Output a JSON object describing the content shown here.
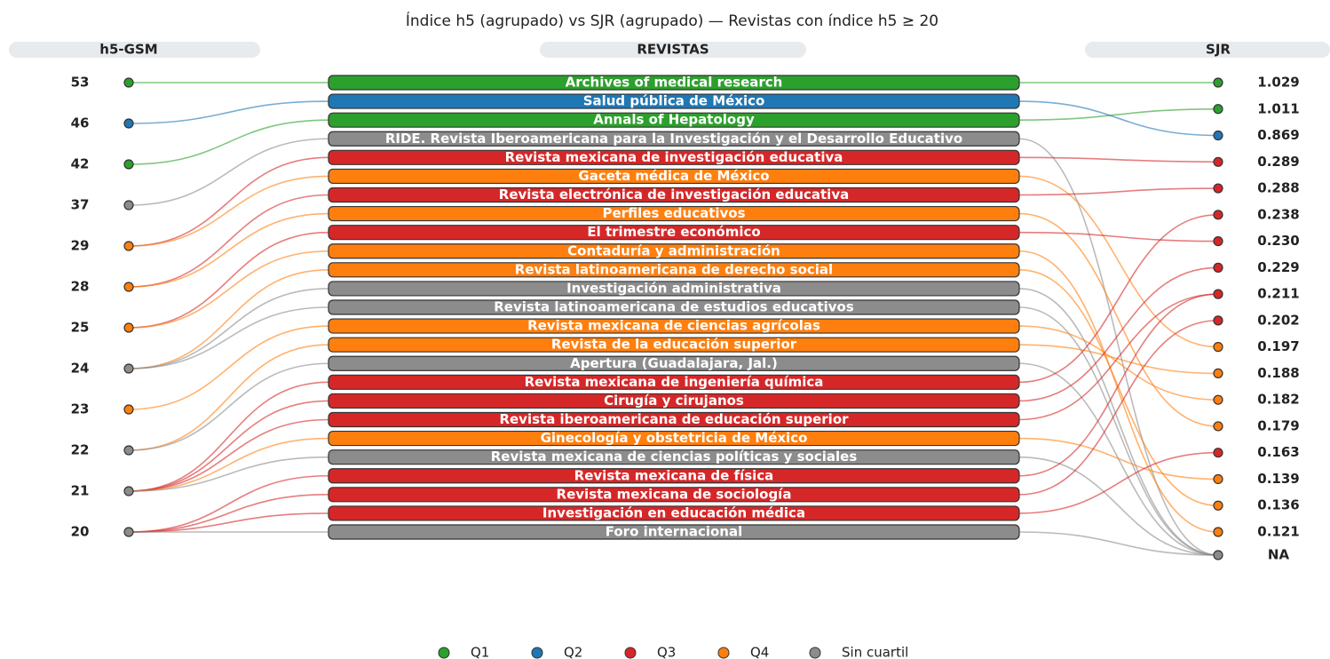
{
  "chart_data": {
    "type": "parallel",
    "title": "Índice h5 (agrupado) vs SJR (agrupado) — Revistas con índice h5 ≥ 20",
    "headers": {
      "left": "h5-GSM",
      "middle": "REVISTAS",
      "right": "SJR"
    },
    "legend": [
      {
        "name": "Q1",
        "color": "#2ca02c"
      },
      {
        "name": "Q2",
        "color": "#1f77b4"
      },
      {
        "name": "Q3",
        "color": "#d62728"
      },
      {
        "name": "Q4",
        "color": "#ff7f0e"
      },
      {
        "name": "Sin cuartil",
        "color": "#8c8c8c"
      }
    ],
    "h5_levels": [
      {
        "value": 53,
        "color": "#2ca02c"
      },
      {
        "value": 46,
        "color": "#1f77b4"
      },
      {
        "value": 42,
        "color": "#2ca02c"
      },
      {
        "value": 37,
        "color": "#8c8c8c"
      },
      {
        "value": 29,
        "color": "#ff7f0e"
      },
      {
        "value": 28,
        "color": "#ff7f0e"
      },
      {
        "value": 25,
        "color": "#ff7f0e"
      },
      {
        "value": 24,
        "color": "#8c8c8c"
      },
      {
        "value": 23,
        "color": "#ff7f0e"
      },
      {
        "value": 22,
        "color": "#8c8c8c"
      },
      {
        "value": 21,
        "color": "#8c8c8c"
      },
      {
        "value": 20,
        "color": "#8c8c8c"
      }
    ],
    "sjr_levels": [
      {
        "value": 1.029,
        "label": "1.029",
        "color": "#2ca02c"
      },
      {
        "value": 1.011,
        "label": "1.011",
        "color": "#2ca02c"
      },
      {
        "value": 0.869,
        "label": "0.869",
        "color": "#1f77b4"
      },
      {
        "value": 0.289,
        "label": "0.289",
        "color": "#d62728"
      },
      {
        "value": 0.288,
        "label": "0.288",
        "color": "#d62728"
      },
      {
        "value": 0.238,
        "label": "0.238",
        "color": "#d62728"
      },
      {
        "value": 0.23,
        "label": "0.230",
        "color": "#d62728"
      },
      {
        "value": 0.229,
        "label": "0.229",
        "color": "#d62728"
      },
      {
        "value": 0.211,
        "label": "0.211",
        "color": "#d62728"
      },
      {
        "value": 0.202,
        "label": "0.202",
        "color": "#d62728"
      },
      {
        "value": 0.197,
        "label": "0.197",
        "color": "#ff7f0e"
      },
      {
        "value": 0.188,
        "label": "0.188",
        "color": "#ff7f0e"
      },
      {
        "value": 0.182,
        "label": "0.182",
        "color": "#ff7f0e"
      },
      {
        "value": 0.179,
        "label": "0.179",
        "color": "#ff7f0e"
      },
      {
        "value": 0.163,
        "label": "0.163",
        "color": "#d62728"
      },
      {
        "value": 0.139,
        "label": "0.139",
        "color": "#ff7f0e"
      },
      {
        "value": 0.136,
        "label": "0.136",
        "color": "#ff7f0e"
      },
      {
        "value": 0.121,
        "label": "0.121",
        "color": "#ff7f0e"
      },
      {
        "value": null,
        "label": "NA",
        "color": "#8c8c8c"
      }
    ],
    "journals": [
      {
        "name": "Archives of medical research",
        "h5": 53,
        "sjr": 1.029,
        "quartile": "Q1"
      },
      {
        "name": "Salud pública de México",
        "h5": 46,
        "sjr": 0.869,
        "quartile": "Q2"
      },
      {
        "name": "Annals of Hepatology",
        "h5": 42,
        "sjr": 1.011,
        "quartile": "Q1"
      },
      {
        "name": "RIDE. Revista Iberoamericana para la Investigación y el Desarrollo Educativo",
        "h5": 37,
        "sjr": null,
        "quartile": "Sin cuartil"
      },
      {
        "name": "Revista mexicana de investigación educativa",
        "h5": 29,
        "sjr": 0.289,
        "quartile": "Q3"
      },
      {
        "name": "Gaceta médica de México",
        "h5": 29,
        "sjr": 0.197,
        "quartile": "Q4"
      },
      {
        "name": "Revista electrónica de investigación educativa",
        "h5": 28,
        "sjr": 0.288,
        "quartile": "Q3"
      },
      {
        "name": "Perfiles educativos",
        "h5": 28,
        "sjr": 0.179,
        "quartile": "Q4"
      },
      {
        "name": "El trimestre económico",
        "h5": 25,
        "sjr": 0.23,
        "quartile": "Q3"
      },
      {
        "name": "Contaduría y administración",
        "h5": 25,
        "sjr": 0.121,
        "quartile": "Q4"
      },
      {
        "name": "Revista latinoamericana de derecho social",
        "h5": 24,
        "sjr": 0.136,
        "quartile": "Q4"
      },
      {
        "name": "Investigación administrativa",
        "h5": 24,
        "sjr": null,
        "quartile": "Sin cuartil"
      },
      {
        "name": "Revista latinoamericana de estudios educativos",
        "h5": 24,
        "sjr": null,
        "quartile": "Sin cuartil"
      },
      {
        "name": "Revista mexicana de ciencias agrícolas",
        "h5": 23,
        "sjr": 0.182,
        "quartile": "Q4"
      },
      {
        "name": "Revista de la educación superior",
        "h5": 22,
        "sjr": 0.188,
        "quartile": "Q4"
      },
      {
        "name": "Apertura (Guadalajara, Jal.)",
        "h5": 22,
        "sjr": null,
        "quartile": "Sin cuartil"
      },
      {
        "name": "Revista mexicana de ingeniería química",
        "h5": 21,
        "sjr": 0.238,
        "quartile": "Q3"
      },
      {
        "name": "Cirugía y cirujanos",
        "h5": 21,
        "sjr": 0.229,
        "quartile": "Q3"
      },
      {
        "name": "Revista iberoamericana de educación superior",
        "h5": 21,
        "sjr": 0.211,
        "quartile": "Q3"
      },
      {
        "name": "Ginecología y obstetricia de México",
        "h5": 21,
        "sjr": 0.139,
        "quartile": "Q4"
      },
      {
        "name": "Revista mexicana de ciencias políticas y sociales",
        "h5": 21,
        "sjr": null,
        "quartile": "Sin cuartil"
      },
      {
        "name": "Revista mexicana de física",
        "h5": 20,
        "sjr": 0.211,
        "quartile": "Q3"
      },
      {
        "name": "Revista mexicana de sociología",
        "h5": 20,
        "sjr": 0.202,
        "quartile": "Q3"
      },
      {
        "name": "Investigación en educación médica",
        "h5": 20,
        "sjr": 0.163,
        "quartile": "Q3"
      },
      {
        "name": "Foro internacional",
        "h5": 20,
        "sjr": null,
        "quartile": "Sin cuartil"
      }
    ]
  }
}
